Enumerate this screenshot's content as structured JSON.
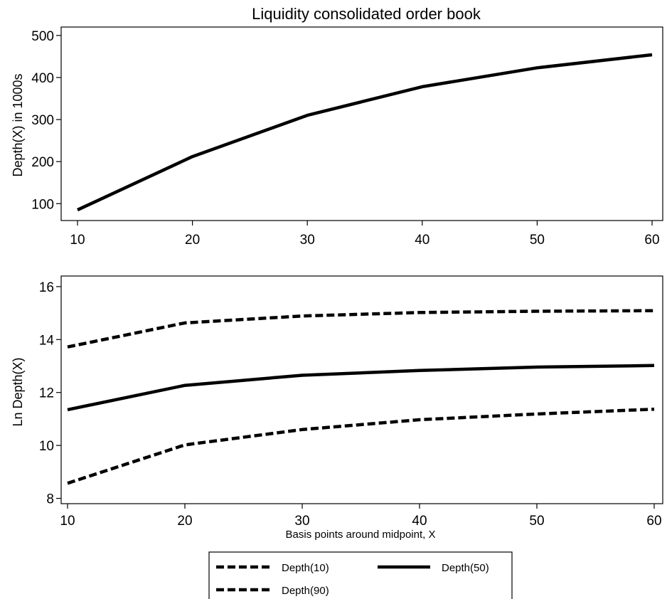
{
  "chart_data": [
    {
      "type": "line",
      "title": "Liquidity consolidated order book",
      "xlabel": "",
      "ylabel": "Depth(X) in 1000s",
      "x": [
        10,
        20,
        30,
        40,
        50,
        60
      ],
      "xticks": [
        "10",
        "20",
        "30",
        "40",
        "50",
        "60"
      ],
      "yticks": [
        "100",
        "200",
        "300",
        "400",
        "500"
      ],
      "xlim": [
        10,
        60
      ],
      "ylim": [
        70,
        520
      ],
      "series": [
        {
          "values": [
            85,
            212,
            310,
            378,
            423,
            454
          ],
          "color": "#000000",
          "style": "solid"
        }
      ]
    },
    {
      "type": "line",
      "title": "",
      "xlabel": "Basis points around midpoint, X",
      "ylabel": "Ln Depth(X)",
      "x": [
        10,
        20,
        30,
        40,
        50,
        60
      ],
      "xticks": [
        "10",
        "20",
        "30",
        "40",
        "50",
        "60"
      ],
      "yticks": [
        "8",
        "10",
        "12",
        "14",
        "16"
      ],
      "xlim": [
        10,
        60
      ],
      "ylim": [
        7.8,
        16.4
      ],
      "legend_position": "bottom",
      "series": [
        {
          "name": "Depth(10)",
          "values": [
            8.57,
            10.02,
            10.6,
            10.97,
            11.19,
            11.37
          ],
          "color": "#000000",
          "style": "dashed"
        },
        {
          "name": "Depth(50)",
          "values": [
            11.35,
            12.27,
            12.65,
            12.83,
            12.96,
            13.02
          ],
          "color": "#000000",
          "style": "solid"
        },
        {
          "name": "Depth(90)",
          "values": [
            13.72,
            14.63,
            14.89,
            15.02,
            15.07,
            15.09
          ],
          "color": "#000000",
          "style": "dashed"
        }
      ]
    }
  ]
}
